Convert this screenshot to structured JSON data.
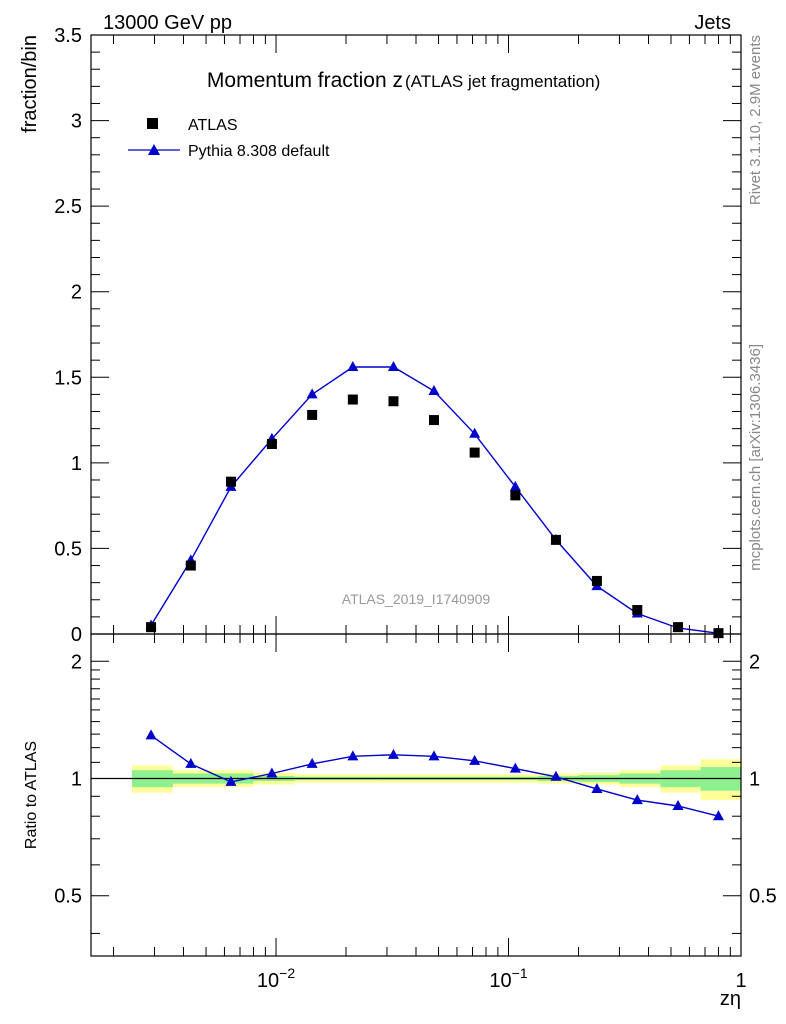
{
  "header": {
    "left": "13000 GeV pp",
    "right": "Jets"
  },
  "side_texts": {
    "rivet": "Rivet 3.1.10,  2.9M events",
    "mcplots": "mcplots.cern.ch [arXiv:1306.3436]"
  },
  "chart_data": [
    {
      "type": "scatter",
      "title": "Momentum fraction z",
      "subtitle": "(ATLAS jet fragmentation)",
      "ylabel": "fraction/bin",
      "xlabel": "zη",
      "watermark": "ATLAS_2019_I1740909",
      "x_scale": "log",
      "xlim": [
        0.0016,
        1.0
      ],
      "ylim": [
        0,
        3.5
      ],
      "y_ticks": [
        "0",
        "0.5",
        "1",
        "1.5",
        "2",
        "2.5",
        "3",
        "3.5"
      ],
      "x_ticks": [
        {
          "base": "10",
          "exp": "−2",
          "value": 0.01
        },
        {
          "base": "10",
          "exp": "−1",
          "value": 0.1
        },
        {
          "base": "1",
          "exp": "",
          "value": 1.0
        }
      ],
      "legend": {
        "placement": "top-left",
        "entries": [
          {
            "label": "ATLAS",
            "marker": "square",
            "color": "#000000"
          },
          {
            "label": "Pythia 8.308 default",
            "marker": "triangle-line",
            "color": "#0000cc"
          }
        ]
      },
      "x": [
        0.0029,
        0.0043,
        0.0064,
        0.0096,
        0.0143,
        0.0214,
        0.032,
        0.0478,
        0.0715,
        0.107,
        0.16,
        0.24,
        0.358,
        0.536,
        0.8
      ],
      "series": [
        {
          "name": "ATLAS",
          "values": [
            0.04,
            0.4,
            0.89,
            1.11,
            1.28,
            1.37,
            1.36,
            1.25,
            1.06,
            0.81,
            0.55,
            0.31,
            0.14,
            0.04,
            0.005
          ]
        },
        {
          "name": "Pythia 8.308 default",
          "values": [
            0.05,
            0.43,
            0.86,
            1.14,
            1.4,
            1.56,
            1.56,
            1.42,
            1.17,
            0.86,
            0.55,
            0.28,
            0.12,
            0.035,
            0.004
          ]
        }
      ]
    },
    {
      "type": "line",
      "ylabel": "Ratio to ATLAS",
      "ylim": [
        0.35,
        2.35
      ],
      "y_scale": "log",
      "y_ticks": [
        "0.5",
        "1",
        "2"
      ],
      "reference": 1.0,
      "bands": {
        "edges": [
          0.0024,
          0.0036,
          0.0053,
          0.008,
          0.012,
          0.018,
          0.027,
          0.04,
          0.06,
          0.09,
          0.134,
          0.2,
          0.3,
          0.45,
          0.67,
          1.0
        ],
        "stat_lo": [
          0.95,
          0.97,
          0.97,
          0.985,
          0.99,
          0.99,
          0.99,
          0.99,
          0.99,
          0.99,
          0.985,
          0.98,
          0.97,
          0.95,
          0.93
        ],
        "stat_hi": [
          1.05,
          1.03,
          1.03,
          1.015,
          1.01,
          1.01,
          1.01,
          1.01,
          1.01,
          1.01,
          1.015,
          1.02,
          1.03,
          1.05,
          1.07
        ],
        "tot_lo": [
          0.92,
          0.95,
          0.95,
          0.965,
          0.975,
          0.975,
          0.975,
          0.975,
          0.975,
          0.975,
          0.97,
          0.965,
          0.95,
          0.92,
          0.88
        ],
        "tot_hi": [
          1.08,
          1.05,
          1.05,
          1.035,
          1.025,
          1.025,
          1.025,
          1.025,
          1.025,
          1.025,
          1.03,
          1.035,
          1.05,
          1.08,
          1.12
        ],
        "stat_color": "#8ff08f",
        "tot_color": "#ffff99"
      },
      "series": [
        {
          "name": "Pythia 8.308 default",
          "values": [
            1.29,
            1.09,
            0.98,
            1.03,
            1.09,
            1.14,
            1.15,
            1.14,
            1.11,
            1.06,
            1.01,
            0.94,
            0.88,
            0.85,
            0.8
          ]
        }
      ]
    }
  ]
}
